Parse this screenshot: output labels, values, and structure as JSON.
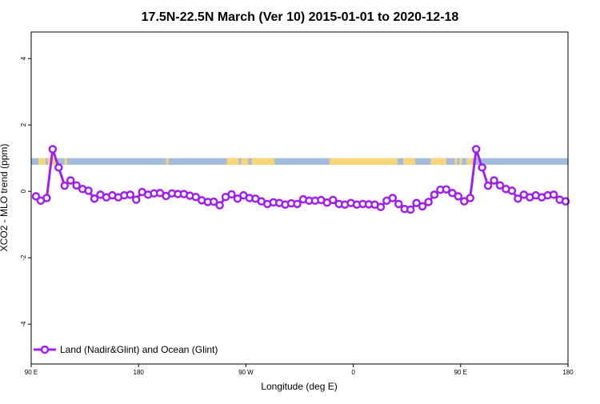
{
  "chart_data": {
    "type": "line",
    "title": "17.5N-22.5N March (Ver 10)   2015-01-01 to 2020-12-18",
    "xlabel": "Longitude (deg E)",
    "ylabel": "XCO2 - MLO trend (ppm)",
    "xlim": [
      90,
      540
    ],
    "ylim": [
      -5.2,
      4.8
    ],
    "x_ticks": [
      {
        "value": 90,
        "label": "90 E"
      },
      {
        "value": 180,
        "label": "180"
      },
      {
        "value": 270,
        "label": "90 W"
      },
      {
        "value": 360,
        "label": "0"
      },
      {
        "value": 450,
        "label": "90 E"
      },
      {
        "value": 540,
        "label": "180"
      }
    ],
    "y_ticks": [
      {
        "value": -4,
        "label": "-4"
      },
      {
        "value": -2,
        "label": "-2"
      },
      {
        "value": 0,
        "label": "0"
      },
      {
        "value": 2,
        "label": "2"
      },
      {
        "value": 4,
        "label": "4"
      }
    ],
    "grid": false,
    "legend": {
      "position": "bottom-left"
    },
    "series": [
      {
        "name": "Land (Nadir&Glint) and Ocean (Glint)",
        "color": "#A020F0",
        "x": [
          94,
          98,
          103,
          108,
          113,
          118,
          123,
          128,
          133,
          138,
          143,
          148,
          153,
          158,
          163,
          168,
          173,
          178,
          183,
          188,
          193,
          198,
          203,
          208,
          213,
          218,
          223,
          228,
          233,
          238,
          243,
          248,
          253,
          258,
          263,
          268,
          273,
          278,
          283,
          288,
          293,
          298,
          303,
          308,
          313,
          318,
          323,
          328,
          333,
          338,
          343,
          348,
          353,
          358,
          363,
          368,
          373,
          378,
          383,
          388,
          393,
          398,
          403,
          408,
          413,
          418,
          423,
          428,
          433,
          438,
          443,
          448,
          453,
          458,
          463,
          468,
          473,
          478,
          483,
          488,
          493,
          498,
          503,
          508,
          513,
          518,
          523,
          528,
          533,
          538
        ],
        "values": [
          -0.15,
          -0.28,
          -0.2,
          1.27,
          0.72,
          0.17,
          0.33,
          0.18,
          0.07,
          0.02,
          -0.22,
          -0.1,
          -0.18,
          -0.12,
          -0.18,
          -0.12,
          -0.1,
          -0.25,
          -0.02,
          -0.1,
          -0.06,
          -0.05,
          -0.14,
          -0.06,
          -0.08,
          -0.08,
          -0.13,
          -0.17,
          -0.27,
          -0.32,
          -0.31,
          -0.42,
          -0.17,
          -0.09,
          -0.22,
          -0.12,
          -0.2,
          -0.22,
          -0.3,
          -0.38,
          -0.33,
          -0.35,
          -0.4,
          -0.36,
          -0.38,
          -0.24,
          -0.28,
          -0.28,
          -0.26,
          -0.34,
          -0.26,
          -0.38,
          -0.4,
          -0.35,
          -0.4,
          -0.38,
          -0.39,
          -0.4,
          -0.47,
          -0.28,
          -0.2,
          -0.38,
          -0.53,
          -0.55,
          -0.35,
          -0.45,
          -0.32,
          -0.1,
          0.05,
          0.06,
          -0.05,
          -0.15,
          -0.3,
          -0.2,
          1.27,
          0.72,
          0.17,
          0.33,
          0.18,
          0.07,
          0.02,
          -0.22,
          -0.1,
          -0.18,
          -0.12,
          -0.18,
          -0.12,
          -0.1,
          -0.25,
          -0.3
        ]
      }
    ],
    "land_ocean_strip": {
      "y_range": [
        0.8,
        1.0
      ],
      "ocean_color": "#A4BDDF",
      "land_color": "#FAD67A",
      "land_ranges": [
        [
          96,
          102
        ],
        [
          104,
          112
        ],
        [
          118,
          120
        ],
        [
          203,
          205
        ],
        [
          254,
          264
        ],
        [
          266,
          272
        ],
        [
          275,
          294
        ],
        [
          340,
          346
        ],
        [
          346,
          397
        ],
        [
          402,
          410
        ],
        [
          408,
          412
        ],
        [
          425,
          438
        ],
        [
          445,
          447
        ],
        [
          449,
          451
        ],
        [
          455,
          460
        ]
      ]
    }
  }
}
